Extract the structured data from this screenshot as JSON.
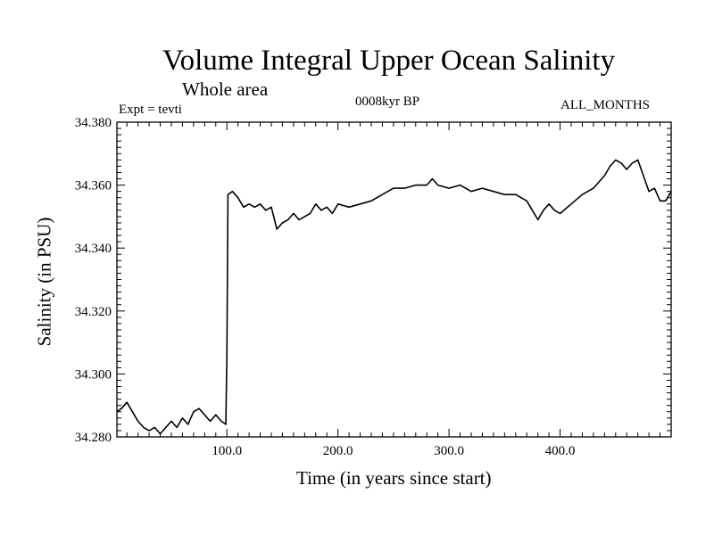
{
  "chart_data": {
    "type": "line",
    "title": "Volume Integral Upper Ocean Salinity",
    "subtitle": "Whole area",
    "experiment": "Expt = tevti",
    "period": "0008kyr BP",
    "months": "ALL_MONTHS",
    "xlabel": "Time (in years since start)",
    "ylabel": "Salinity (in PSU)",
    "xlim": [
      1,
      500
    ],
    "ylim": [
      34.28,
      34.38
    ],
    "xticks": [
      100,
      200,
      300,
      400
    ],
    "xtick_labels": [
      "100.0",
      "200.0",
      "300.0",
      "400.0"
    ],
    "yticks": [
      34.28,
      34.3,
      34.32,
      34.34,
      34.36,
      34.38
    ],
    "ytick_labels": [
      "34.280",
      "34.300",
      "34.320",
      "34.340",
      "34.360",
      "34.380"
    ],
    "grid": false,
    "series": [
      {
        "color": "#000000",
        "x": [
          1,
          5,
          10,
          15,
          20,
          25,
          30,
          35,
          40,
          45,
          50,
          55,
          60,
          65,
          70,
          75,
          80,
          85,
          90,
          95,
          99,
          100,
          101,
          105,
          110,
          115,
          120,
          125,
          130,
          135,
          140,
          145,
          150,
          155,
          160,
          165,
          170,
          175,
          180,
          185,
          190,
          195,
          200,
          210,
          220,
          230,
          240,
          250,
          260,
          270,
          280,
          285,
          290,
          300,
          310,
          320,
          330,
          340,
          350,
          360,
          370,
          375,
          380,
          385,
          390,
          395,
          400,
          410,
          420,
          430,
          440,
          445,
          450,
          455,
          460,
          465,
          470,
          475,
          480,
          485,
          490,
          495,
          500
        ],
        "values": [
          34.288,
          34.289,
          34.291,
          34.288,
          34.285,
          34.283,
          34.282,
          34.283,
          34.281,
          34.283,
          34.285,
          34.283,
          34.286,
          34.284,
          34.288,
          34.289,
          34.287,
          34.285,
          34.287,
          34.285,
          34.284,
          34.305,
          34.357,
          34.358,
          34.356,
          34.353,
          34.354,
          34.353,
          34.354,
          34.352,
          34.353,
          34.346,
          34.348,
          34.349,
          34.351,
          34.349,
          34.35,
          34.351,
          34.354,
          34.352,
          34.353,
          34.351,
          34.354,
          34.353,
          34.354,
          34.355,
          34.357,
          34.359,
          34.359,
          34.36,
          34.36,
          34.362,
          34.36,
          34.359,
          34.36,
          34.358,
          34.359,
          34.358,
          34.357,
          34.357,
          34.355,
          34.352,
          34.349,
          34.352,
          34.354,
          34.352,
          34.351,
          34.354,
          34.357,
          34.359,
          34.363,
          34.366,
          34.368,
          34.367,
          34.365,
          34.367,
          34.368,
          34.363,
          34.358,
          34.359,
          34.355,
          34.355,
          34.358
        ]
      }
    ]
  }
}
